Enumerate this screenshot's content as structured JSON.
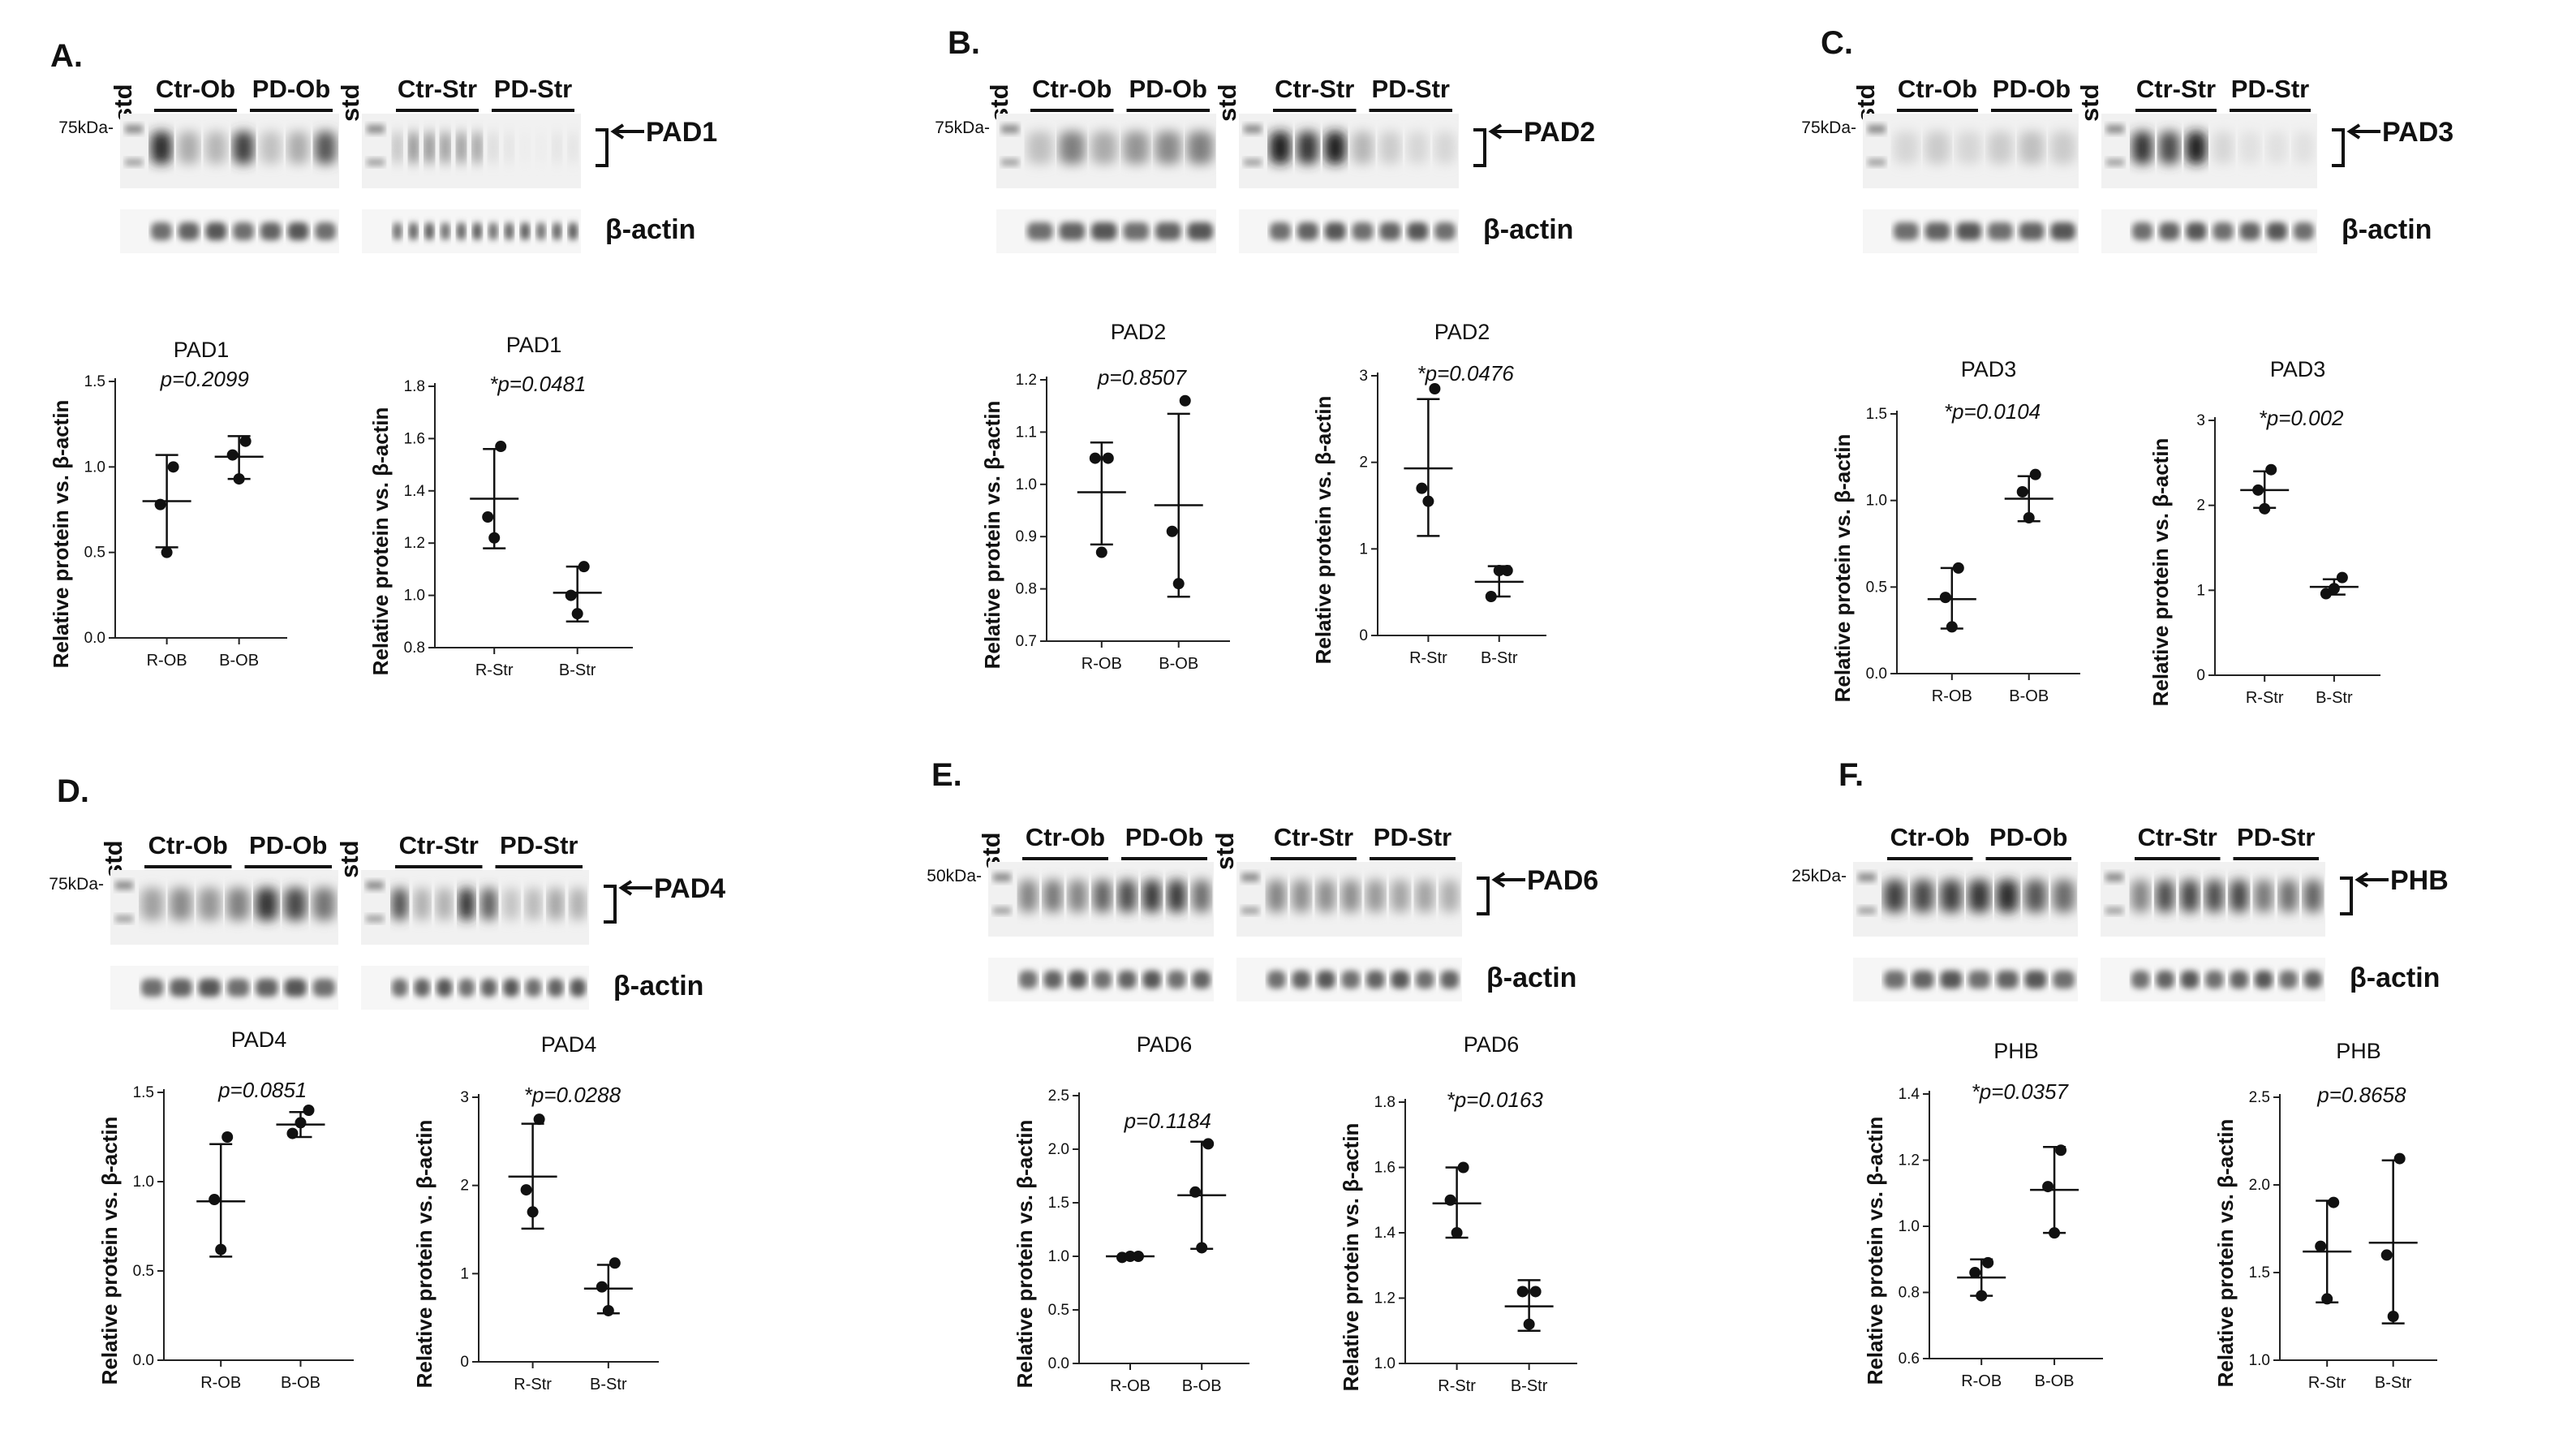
{
  "panels": [
    {
      "label": "A.",
      "protein": "PAD1",
      "mw": "75kDa-",
      "loading": "β-actin",
      "std": "std",
      "groups": [
        "Ctr-Ob",
        "PD-Ob",
        "Ctr-Str",
        "PD-Str"
      ],
      "lane_patterns": [
        [
          0.9,
          0.3,
          0.25,
          0.8,
          0.2,
          0.3,
          0.7
        ],
        [
          0.25,
          0.55,
          0.55,
          0.5,
          0.5,
          0.45,
          0.1,
          0.05,
          0.0,
          0.0,
          0.05,
          0.05
        ]
      ],
      "charts": [
        {
          "title": "PAD1",
          "pvalue": "p=0.2099",
          "ylabel": "Relative protein vs. β-actin",
          "type": "scatter",
          "categories": [
            "R-OB",
            "B-OB"
          ],
          "ylim": [
            0.0,
            1.5
          ],
          "yticks": [
            0.0,
            0.5,
            1.0,
            1.5
          ],
          "ytick_labels": [
            "0.0",
            "0.5",
            "1.0",
            "1.5"
          ],
          "points": [
            [
              0.5,
              0.78,
              1.0
            ],
            [
              0.93,
              1.07,
              1.15
            ]
          ],
          "mean": [
            0.8,
            1.06
          ],
          "err_low": [
            0.53,
            0.93
          ],
          "err_high": [
            1.07,
            1.18
          ]
        },
        {
          "title": "PAD1",
          "pvalue": "*p=0.0481",
          "ylabel": "Relative protein vs. β-actin",
          "type": "scatter",
          "categories": [
            "R-Str",
            "B-Str"
          ],
          "ylim": [
            0.8,
            1.8
          ],
          "yticks": [
            0.8,
            1.0,
            1.2,
            1.4,
            1.6,
            1.8
          ],
          "ytick_labels": [
            "0.8",
            "1.0",
            "1.2",
            "1.4",
            "1.6",
            "1.8"
          ],
          "points": [
            [
              1.22,
              1.3,
              1.57
            ],
            [
              0.93,
              1.0,
              1.11
            ]
          ],
          "mean": [
            1.37,
            1.01
          ],
          "err_low": [
            1.18,
            0.9
          ],
          "err_high": [
            1.56,
            1.11
          ]
        }
      ]
    },
    {
      "label": "B.",
      "protein": "PAD2",
      "mw": "75kDa-",
      "loading": "β-actin",
      "std": "std",
      "groups": [
        "Ctr-Ob",
        "PD-Ob",
        "Ctr-Str",
        "PD-Str"
      ],
      "lane_patterns": [
        [
          0.2,
          0.5,
          0.3,
          0.4,
          0.45,
          0.5
        ],
        [
          0.95,
          0.85,
          0.95,
          0.25,
          0.15,
          0.1,
          0.1
        ]
      ],
      "charts": [
        {
          "title": "PAD2",
          "pvalue": "p=0.8507",
          "ylabel": "Relative protein vs. β-actin",
          "type": "scatter",
          "categories": [
            "R-OB",
            "B-OB"
          ],
          "ylim": [
            0.7,
            1.2
          ],
          "yticks": [
            0.7,
            0.8,
            0.9,
            1.0,
            1.1,
            1.2
          ],
          "ytick_labels": [
            "0.7",
            "0.8",
            "0.9",
            "1.0",
            "1.1",
            "1.2"
          ],
          "points": [
            [
              0.87,
              1.05,
              1.05
            ],
            [
              0.81,
              0.91,
              1.16
            ]
          ],
          "mean": [
            0.985,
            0.96
          ],
          "err_low": [
            0.885,
            0.785
          ],
          "err_high": [
            1.08,
            1.135
          ]
        },
        {
          "title": "PAD2",
          "pvalue": "*p=0.0476",
          "ylabel": "Relative protein vs. β-actin",
          "type": "scatter",
          "categories": [
            "R-Str",
            "B-Str"
          ],
          "ylim": [
            0,
            3
          ],
          "yticks": [
            0,
            1,
            2,
            3
          ],
          "ytick_labels": [
            "0",
            "1",
            "2",
            "3"
          ],
          "points": [
            [
              1.55,
              1.7,
              2.85
            ],
            [
              0.45,
              0.75,
              0.75
            ]
          ],
          "mean": [
            1.93,
            0.62
          ],
          "err_low": [
            1.15,
            0.45
          ],
          "err_high": [
            2.73,
            0.8
          ]
        }
      ]
    },
    {
      "label": "C.",
      "protein": "PAD3",
      "mw": "75kDa-",
      "loading": "β-actin",
      "std": "std",
      "groups": [
        "Ctr-Ob",
        "PD-Ob",
        "Ctr-Str",
        "PD-Str"
      ],
      "lane_patterns": [
        [
          0.1,
          0.15,
          0.1,
          0.15,
          0.2,
          0.15
        ],
        [
          0.85,
          0.75,
          0.95,
          0.1,
          0.05,
          0.05,
          0.05
        ]
      ],
      "charts": [
        {
          "title": "PAD3",
          "pvalue": "*p=0.0104",
          "ylabel": "Relative protein vs. β-actin",
          "type": "scatter",
          "categories": [
            "R-OB",
            "B-OB"
          ],
          "ylim": [
            0.0,
            1.5
          ],
          "yticks": [
            0.0,
            0.5,
            1.0,
            1.5
          ],
          "ytick_labels": [
            "0.0",
            "0.5",
            "1.0",
            "1.5"
          ],
          "points": [
            [
              0.27,
              0.44,
              0.61
            ],
            [
              0.9,
              1.05,
              1.15
            ]
          ],
          "mean": [
            0.43,
            1.01
          ],
          "err_low": [
            0.26,
            0.88
          ],
          "err_high": [
            0.61,
            1.14
          ]
        },
        {
          "title": "PAD3",
          "pvalue": "*p=0.002",
          "ylabel": "Relative protein vs. β-actin",
          "type": "scatter",
          "categories": [
            "R-Str",
            "B-Str"
          ],
          "ylim": [
            0,
            3
          ],
          "yticks": [
            0,
            1,
            2,
            3
          ],
          "ytick_labels": [
            "0",
            "1",
            "2",
            "3"
          ],
          "points": [
            [
              1.96,
              2.18,
              2.42
            ],
            [
              0.96,
              1.02,
              1.15
            ]
          ],
          "mean": [
            2.18,
            1.04
          ],
          "err_low": [
            1.97,
            0.95
          ],
          "err_high": [
            2.4,
            1.13
          ]
        }
      ]
    },
    {
      "label": "D.",
      "protein": "PAD4",
      "mw": "75kDa-",
      "loading": "β-actin",
      "std": "std",
      "groups": [
        "Ctr-Ob",
        "PD-Ob",
        "Ctr-Str",
        "PD-Str"
      ],
      "lane_patterns": [
        [
          0.35,
          0.45,
          0.4,
          0.5,
          0.85,
          0.75,
          0.55
        ],
        [
          0.75,
          0.3,
          0.3,
          0.9,
          0.7,
          0.2,
          0.25,
          0.35,
          0.3
        ]
      ],
      "charts": [
        {
          "title": "PAD4",
          "pvalue": "p=0.0851",
          "ylabel": "Relative protein vs. β-actin",
          "type": "scatter",
          "categories": [
            "R-OB",
            "B-OB"
          ],
          "ylim": [
            0.0,
            1.5
          ],
          "yticks": [
            0.0,
            0.5,
            1.0,
            1.5
          ],
          "ytick_labels": [
            "0.0",
            "0.5",
            "1.0",
            "1.5"
          ],
          "points": [
            [
              0.62,
              0.9,
              1.25
            ],
            [
              1.27,
              1.33,
              1.4
            ]
          ],
          "mean": [
            0.89,
            1.32
          ],
          "err_low": [
            0.58,
            1.25
          ],
          "err_high": [
            1.21,
            1.39
          ]
        },
        {
          "title": "PAD4",
          "pvalue": "*p=0.0288",
          "ylabel": "Relative protein vs. β-actin",
          "type": "scatter",
          "categories": [
            "R-Str",
            "B-Str"
          ],
          "ylim": [
            0,
            3
          ],
          "yticks": [
            0,
            1,
            2,
            3
          ],
          "ytick_labels": [
            "0",
            "1",
            "2",
            "3"
          ],
          "points": [
            [
              1.7,
              1.95,
              2.75
            ],
            [
              0.58,
              0.85,
              1.12
            ]
          ],
          "mean": [
            2.1,
            0.83
          ],
          "err_low": [
            1.51,
            0.55
          ],
          "err_high": [
            2.7,
            1.1
          ]
        }
      ]
    },
    {
      "label": "E.",
      "protein": "PAD6",
      "mw": "50kDa-",
      "loading": "β-actin",
      "std": "std",
      "groups": [
        "Ctr-Ob",
        "PD-Ob",
        "Ctr-Str",
        "PD-Str"
      ],
      "lane_patterns": [
        [
          0.5,
          0.55,
          0.5,
          0.65,
          0.75,
          0.85,
          0.85,
          0.6
        ],
        [
          0.5,
          0.45,
          0.45,
          0.45,
          0.4,
          0.35,
          0.35,
          0.3
        ]
      ],
      "charts": [
        {
          "title": "PAD6",
          "pvalue": "p=0.1184",
          "ylabel": "Relative protein vs. β-actin",
          "type": "scatter",
          "categories": [
            "R-OB",
            "B-OB"
          ],
          "ylim": [
            0.0,
            2.5
          ],
          "yticks": [
            0.0,
            0.5,
            1.0,
            1.5,
            2.0,
            2.5
          ],
          "ytick_labels": [
            "0.0",
            "0.5",
            "1.0",
            "1.5",
            "2.0",
            "2.5"
          ],
          "points": [
            [
              0.99,
              1.0,
              1.0
            ],
            [
              1.08,
              1.6,
              2.05
            ]
          ],
          "mean": [
            1.0,
            1.57
          ],
          "err_low": [
            0.98,
            1.07
          ],
          "err_high": [
            1.02,
            2.07
          ]
        },
        {
          "title": "PAD6",
          "pvalue": "*p=0.0163",
          "ylabel": "Relative protein vs. β-actin",
          "type": "scatter",
          "categories": [
            "R-Str",
            "B-Str"
          ],
          "ylim": [
            1.0,
            1.8
          ],
          "yticks": [
            1.0,
            1.2,
            1.4,
            1.6,
            1.8
          ],
          "ytick_labels": [
            "1.0",
            "1.2",
            "1.4",
            "1.6",
            "1.8"
          ],
          "points": [
            [
              1.4,
              1.5,
              1.6
            ],
            [
              1.12,
              1.22,
              1.22
            ]
          ],
          "mean": [
            1.49,
            1.175
          ],
          "err_low": [
            1.385,
            1.1
          ],
          "err_high": [
            1.6,
            1.255
          ]
        }
      ]
    },
    {
      "label": "F.",
      "protein": "PHB",
      "mw": "25kDa-",
      "loading": "β-actin",
      "std": "",
      "groups": [
        "Ctr-Ob",
        "PD-Ob",
        "Ctr-Str",
        "PD-Str"
      ],
      "lane_patterns": [
        [
          0.8,
          0.75,
          0.8,
          0.85,
          0.9,
          0.7,
          0.6
        ],
        [
          0.5,
          0.75,
          0.8,
          0.75,
          0.8,
          0.55,
          0.6,
          0.65
        ]
      ],
      "charts": [
        {
          "title": "PHB",
          "pvalue": "*p=0.0357",
          "ylabel": "Relative protein vs. β-actin",
          "type": "scatter",
          "categories": [
            "R-OB",
            "B-OB"
          ],
          "ylim": [
            0.6,
            1.4
          ],
          "yticks": [
            0.6,
            0.8,
            1.0,
            1.2,
            1.4
          ],
          "ytick_labels": [
            "0.6",
            "0.8",
            "1.0",
            "1.2",
            "1.4"
          ],
          "points": [
            [
              0.79,
              0.86,
              0.89
            ],
            [
              0.98,
              1.12,
              1.23
            ]
          ],
          "mean": [
            0.845,
            1.11
          ],
          "err_low": [
            0.79,
            0.98
          ],
          "err_high": [
            0.9,
            1.24
          ]
        },
        {
          "title": "PHB",
          "pvalue": "p=0.8658",
          "ylabel": "Relative protein vs. β-actin",
          "type": "scatter",
          "categories": [
            "R-Str",
            "B-Str"
          ],
          "ylim": [
            1.0,
            2.5
          ],
          "yticks": [
            1.0,
            1.5,
            2.0,
            2.5
          ],
          "ytick_labels": [
            "1.0",
            "1.5",
            "2.0",
            "2.5"
          ],
          "points": [
            [
              1.35,
              1.65,
              1.9
            ],
            [
              1.25,
              1.6,
              2.15
            ]
          ],
          "mean": [
            1.62,
            1.67
          ],
          "err_low": [
            1.33,
            1.21
          ],
          "err_high": [
            1.91,
            2.14
          ]
        }
      ]
    }
  ]
}
